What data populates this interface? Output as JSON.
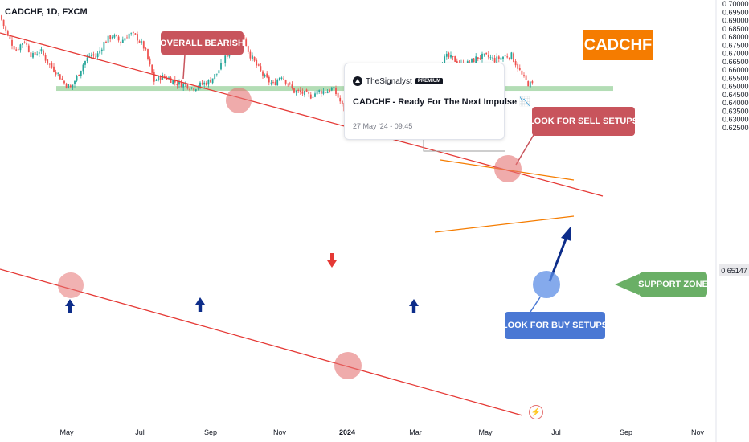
{
  "header": {
    "symbol": "CADCHF, 1D, FXCM"
  },
  "chart_data": {
    "type": "candlestick",
    "symbol": "CADCHF",
    "interval": "1D",
    "source": "FXCM",
    "x_tick_labels": [
      "May",
      "Jul",
      "Sep",
      "Nov",
      "2024",
      "Mar",
      "May",
      "Jul",
      "Sep",
      "Nov"
    ],
    "y_tick_labels": [
      "0.70000",
      "0.69500",
      "0.69000",
      "0.68500",
      "0.68000",
      "0.67500",
      "0.67000",
      "0.66500",
      "0.66000",
      "0.65500",
      "0.65000",
      "0.64500",
      "0.64000",
      "0.63500",
      "0.63000",
      "0.62500"
    ],
    "ylim": [
      0.6235,
      0.7005
    ],
    "last_price": "0.65147",
    "price_path": [
      [
        0,
        0.693
      ],
      [
        10,
        0.68
      ],
      [
        20,
        0.672
      ],
      [
        30,
        0.678
      ],
      [
        40,
        0.668
      ],
      [
        50,
        0.672
      ],
      [
        60,
        0.664
      ],
      [
        70,
        0.659
      ],
      [
        80,
        0.652
      ],
      [
        88,
        0.649
      ],
      [
        96,
        0.656
      ],
      [
        104,
        0.664
      ],
      [
        112,
        0.669
      ],
      [
        120,
        0.668
      ],
      [
        130,
        0.677
      ],
      [
        140,
        0.681
      ],
      [
        150,
        0.677
      ],
      [
        160,
        0.682
      ],
      [
        170,
        0.68
      ],
      [
        180,
        0.673
      ],
      [
        186,
        0.663
      ],
      [
        192,
        0.653
      ],
      [
        200,
        0.656
      ],
      [
        210,
        0.655
      ],
      [
        220,
        0.652
      ],
      [
        232,
        0.651
      ],
      [
        240,
        0.649
      ],
      [
        250,
        0.651
      ],
      [
        260,
        0.653
      ],
      [
        270,
        0.658
      ],
      [
        280,
        0.667
      ],
      [
        290,
        0.675
      ],
      [
        298,
        0.681
      ],
      [
        304,
        0.679
      ],
      [
        310,
        0.67
      ],
      [
        320,
        0.662
      ],
      [
        330,
        0.655
      ],
      [
        340,
        0.651
      ],
      [
        350,
        0.657
      ],
      [
        358,
        0.652
      ],
      [
        366,
        0.647
      ],
      [
        376,
        0.646
      ],
      [
        386,
        0.644
      ],
      [
        396,
        0.647
      ],
      [
        406,
        0.647
      ],
      [
        414,
        0.649
      ],
      [
        420,
        0.644
      ],
      [
        428,
        0.636
      ],
      [
        436,
        0.633
      ],
      [
        446,
        0.636
      ],
      [
        456,
        0.642
      ],
      [
        466,
        0.644
      ],
      [
        476,
        0.647
      ],
      [
        486,
        0.651
      ],
      [
        496,
        0.653
      ],
      [
        506,
        0.654
      ],
      [
        516,
        0.651
      ],
      [
        526,
        0.652
      ],
      [
        536,
        0.656
      ],
      [
        546,
        0.663
      ],
      [
        556,
        0.668
      ],
      [
        566,
        0.666
      ],
      [
        576,
        0.662
      ],
      [
        586,
        0.665
      ],
      [
        596,
        0.668
      ],
      [
        606,
        0.668
      ],
      [
        616,
        0.666
      ],
      [
        626,
        0.668
      ],
      [
        636,
        0.669
      ],
      [
        644,
        0.662
      ],
      [
        650,
        0.656
      ],
      [
        656,
        0.652
      ],
      [
        662,
        0.651
      ]
    ],
    "annotations": [
      {
        "text": "OVERALL BEARISH"
      },
      {
        "text": "LOOK FOR SELL SETUPS"
      },
      {
        "text": "SUPPORT ZONE"
      },
      {
        "text": "LOOK FOR BUY SETUPS"
      },
      {
        "text": "CADCHF"
      }
    ],
    "support_zone": [
      0.6473,
      0.6502
    ],
    "grid": false
  },
  "idea_card": {
    "author": "TheSignalyst",
    "badge": "PREMIUM",
    "title": "CADCHF - Ready For The Next Impulse 📉",
    "date": "27 May '24 - 09:45"
  },
  "labels": {
    "overall_bearish": "OVERALL BEARISH",
    "sell_setups": "LOOK FOR SELL SETUPS",
    "support_zone": "SUPPORT ZONE",
    "buy_setups": "LOOK FOR BUY SETUPS",
    "cadchf": "CADCHF"
  },
  "colors": {
    "up": "#26a69a",
    "down": "#ef5350",
    "channel": "#e53935",
    "wedge": "#f57c00",
    "zone": "#81c784",
    "label_red": "#c8545c",
    "label_blue": "#4a78d4",
    "label_green": "#6aaf66",
    "arrow_blue": "#0d2d8a"
  },
  "icons": {
    "flash": "flash-icon"
  }
}
